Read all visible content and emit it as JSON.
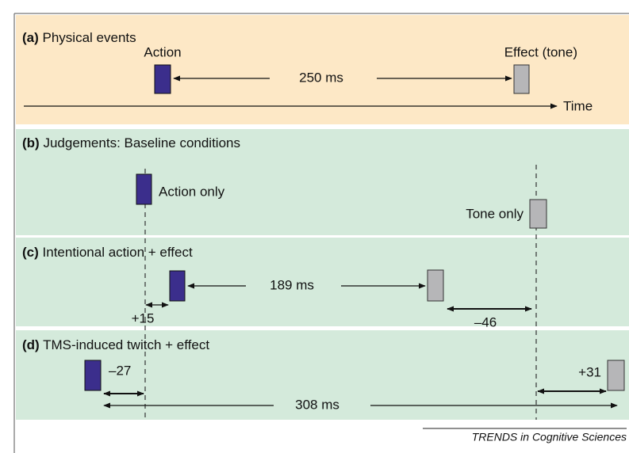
{
  "panels": [
    {
      "label": "(a)",
      "title": "Physical events",
      "texts": [
        "Action",
        "Effect (tone)",
        "250 ms",
        "Time"
      ]
    },
    {
      "label": "(b)",
      "title": "Judgements: Baseline conditions",
      "texts": [
        "Action only",
        "Tone only"
      ]
    },
    {
      "label": "(c)",
      "title": "Intentional action + effect",
      "texts": [
        "189 ms",
        "+15",
        "–46"
      ]
    },
    {
      "label": "(d)",
      "title": "TMS-induced twitch + effect",
      "texts": [
        "–27",
        "+31",
        "308 ms"
      ]
    }
  ],
  "footer": "TRENDS in Cognitive Sciences"
}
